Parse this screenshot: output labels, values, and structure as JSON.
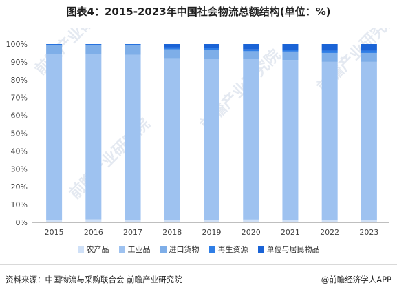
{
  "title": "图表4：2015-2023年中国社会物流总额结构(单位：%)",
  "chart_data": {
    "type": "bar",
    "stacked": true,
    "categories": [
      "2015",
      "2016",
      "2017",
      "2018",
      "2019",
      "2020",
      "2021",
      "2022",
      "2023"
    ],
    "ylim": [
      0,
      100
    ],
    "yticks": [
      "0%",
      "10%",
      "20%",
      "30%",
      "40%",
      "50%",
      "60%",
      "70%",
      "80%",
      "90%",
      "100%"
    ],
    "legend_position": "bottom",
    "grid": false,
    "series": [
      {
        "name": "农产品",
        "color": "#cfe0f7",
        "values": [
          1.5,
          1.7,
          1.4,
          1.4,
          1.4,
          1.6,
          1.5,
          1.5,
          1.5
        ]
      },
      {
        "name": "工业品",
        "color": "#9ec2f0",
        "values": [
          93.0,
          92.8,
          92.5,
          90.6,
          90.3,
          89.9,
          89.6,
          88.5,
          88.5
        ]
      },
      {
        "name": "进口货物",
        "color": "#7eaee8",
        "values": [
          5.0,
          5.0,
          5.5,
          5.1,
          4.9,
          4.5,
          4.7,
          5.0,
          5.0
        ]
      },
      {
        "name": "再生资源",
        "color": "#2f7ee6",
        "values": [
          0.3,
          0.3,
          0.4,
          1.0,
          1.1,
          1.0,
          1.1,
          1.3,
          1.3
        ]
      },
      {
        "name": "单位与居民物品",
        "color": "#1a63d6",
        "values": [
          0.2,
          0.2,
          0.2,
          1.9,
          2.3,
          3.0,
          3.1,
          3.7,
          3.7
        ]
      }
    ]
  },
  "watermark": "前瞻产业研究院",
  "source": "资料来源：中国物流与采购联合会 前瞻产业研究院",
  "brand": "@前瞻经济学人APP"
}
